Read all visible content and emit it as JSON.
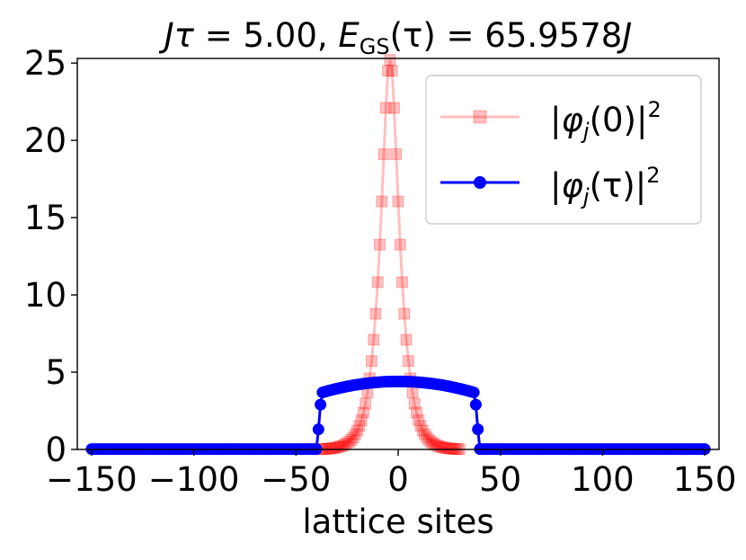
{
  "chart_data": {
    "type": "line",
    "title": "Jτ = 5.00,  E_GS(τ) = 65.9578J",
    "title_parts": {
      "j1": "J",
      "tau1": "τ",
      "eq1": " = 5.00,  ",
      "E": "E",
      "sub": "GS",
      "rest": "(τ) = 65.9578",
      "j2": "J"
    },
    "xlabel": "lattice sites",
    "ylabel": "",
    "xlim": [
      -157,
      157
    ],
    "ylim": [
      0,
      25.3
    ],
    "xticks": [
      -150,
      -100,
      -50,
      0,
      50,
      100,
      150
    ],
    "xtick_labels": [
      "−150",
      "−100",
      "−50",
      "0",
      "50",
      "100",
      "150"
    ],
    "yticks": [
      0,
      5,
      10,
      15,
      20,
      25
    ],
    "ytick_labels": [
      "0",
      "5",
      "10",
      "15",
      "20",
      "25"
    ],
    "grid": false,
    "legend_position": "top-right",
    "series": [
      {
        "name": "|φj(0)|²",
        "legend_label": {
          "pre": "|",
          "phi": "φ",
          "sub": "j",
          "arg": "(0)|",
          "sup": "2"
        },
        "color": "#ff0000",
        "marker": "square",
        "alpha": 0.25,
        "x_range": [
          -38,
          38
        ],
        "values": [
          0.02,
          0.02,
          0.03,
          0.04,
          0.05,
          0.06,
          0.08,
          0.1,
          0.13,
          0.16,
          0.2,
          0.25,
          0.32,
          0.4,
          0.5,
          0.62,
          0.78,
          0.98,
          1.22,
          1.53,
          1.9,
          2.38,
          2.96,
          3.69,
          4.6,
          5.72,
          7.1,
          8.78,
          10.82,
          13.25,
          16.05,
          19.1,
          22.1,
          24.5,
          25.2,
          24.5,
          22.1,
          19.1,
          16.05,
          13.25,
          10.82,
          8.78,
          7.1,
          5.72,
          4.6,
          3.69,
          2.96,
          2.38,
          1.9,
          1.53,
          1.22,
          0.98,
          0.78,
          0.62,
          0.5,
          0.4,
          0.32,
          0.25,
          0.2,
          0.16,
          0.13,
          0.1,
          0.08,
          0.06,
          0.05,
          0.04,
          0.03,
          0.02,
          0.02
        ]
      },
      {
        "name": "|φj(τ)|²",
        "legend_label": {
          "pre": "|",
          "phi": "φ",
          "sub": "j",
          "arg": "(τ)|",
          "sup": "2"
        },
        "color": "#0000ff",
        "marker": "circle",
        "x_range": [
          -150,
          150
        ],
        "support": [
          -38,
          38
        ],
        "peak": 4.4,
        "edge_value": 3.65,
        "outer_edge_values": [
          1.3,
          2.9
        ],
        "baseline": 0.02
      }
    ]
  }
}
